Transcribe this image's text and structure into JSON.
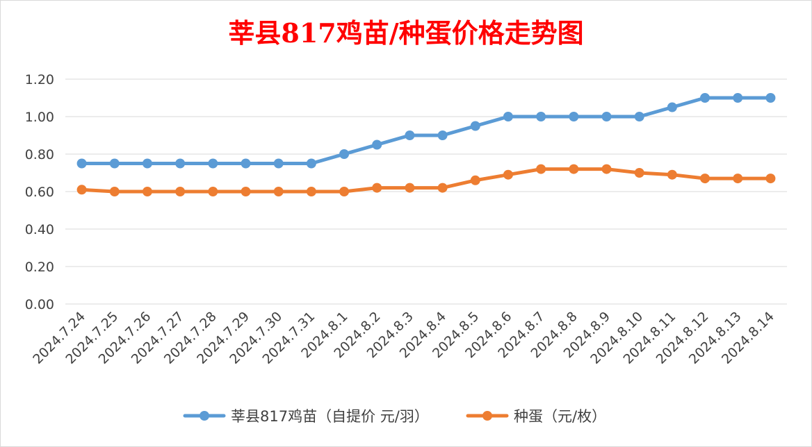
{
  "chart_data": {
    "type": "line",
    "title": "莘县817鸡苗/种蛋价格走势图",
    "xlabel": "",
    "ylabel": "",
    "ylim": [
      0,
      1.2
    ],
    "yticks": [
      "0.00",
      "0.20",
      "0.40",
      "0.60",
      "0.80",
      "1.00",
      "1.20"
    ],
    "grid": true,
    "legend_position": "bottom",
    "categories": [
      "2024.7.24",
      "2024.7.25",
      "2024.7.26",
      "2024.7.27",
      "2024.7.28",
      "2024.7.29",
      "2024.7.30",
      "2024.7.31",
      "2024.8.1",
      "2024.8.2",
      "2024.8.3",
      "2024.8.4",
      "2024.8.5",
      "2024.8.6",
      "2024.8.7",
      "2024.8.8",
      "2024.8.9",
      "2024.8.10",
      "2024.8.11",
      "2024.8.12",
      "2024.8.13",
      "2024.8.14"
    ],
    "series": [
      {
        "name": "莘县817鸡苗（自提价 元/羽）",
        "color": "#5b9bd5",
        "values": [
          0.75,
          0.75,
          0.75,
          0.75,
          0.75,
          0.75,
          0.75,
          0.75,
          0.8,
          0.85,
          0.9,
          0.9,
          0.95,
          1.0,
          1.0,
          1.0,
          1.0,
          1.0,
          1.05,
          1.1,
          1.1,
          1.1
        ]
      },
      {
        "name": "种蛋（元/枚）",
        "color": "#ed7d31",
        "values": [
          0.61,
          0.6,
          0.6,
          0.6,
          0.6,
          0.6,
          0.6,
          0.6,
          0.6,
          0.62,
          0.62,
          0.62,
          0.66,
          0.69,
          0.72,
          0.72,
          0.72,
          0.7,
          0.69,
          0.67,
          0.67,
          0.67
        ]
      }
    ]
  }
}
